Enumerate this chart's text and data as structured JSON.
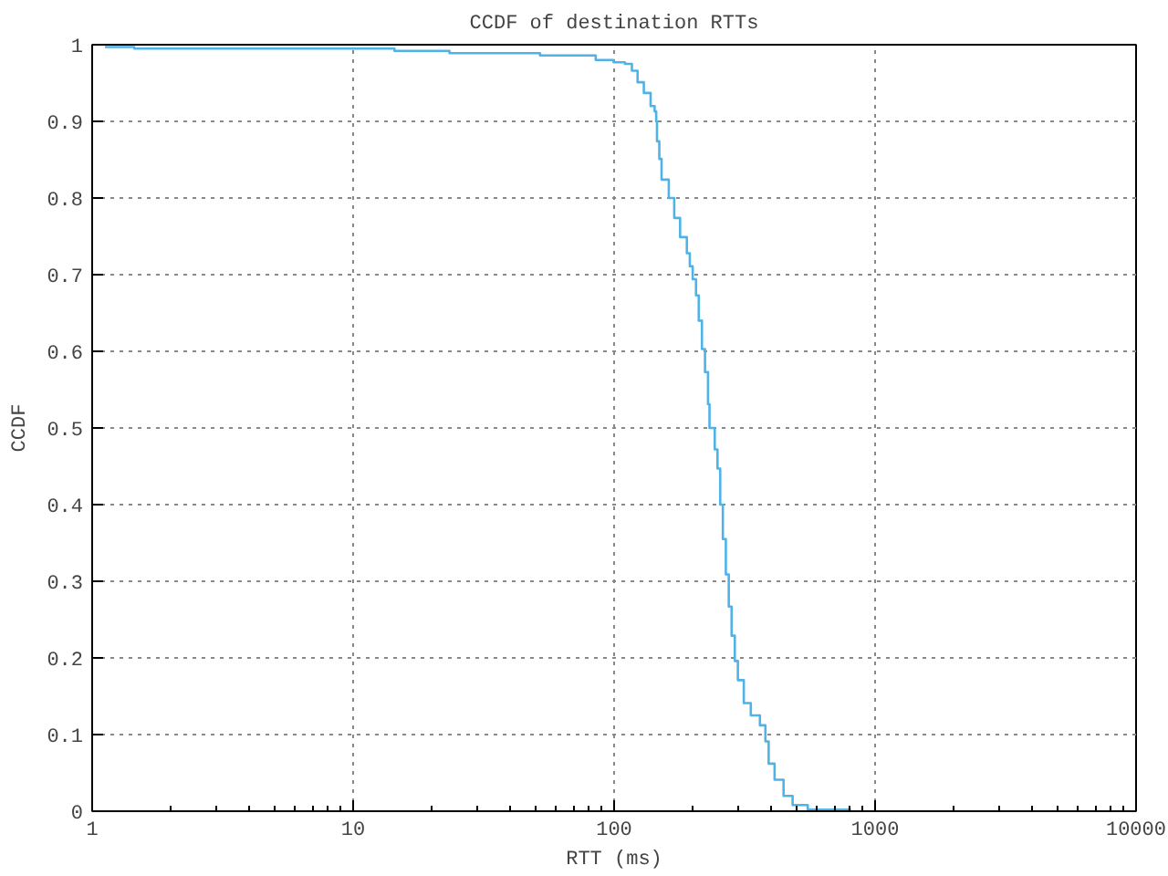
{
  "chart_data": {
    "type": "step",
    "title": "CCDF of destination RTTs",
    "xlabel": "RTT (ms)",
    "ylabel": "CCDF",
    "log": "x",
    "grid": true,
    "xlim": [
      1,
      10000
    ],
    "xticks": [
      1,
      10,
      100,
      1000,
      10000
    ],
    "ylim": [
      0,
      1
    ],
    "yticks": [
      0,
      0.1,
      0.2,
      0.3,
      0.4,
      0.5,
      0.6,
      0.7,
      0.8,
      0.9,
      1
    ],
    "series": [
      {
        "color": "#4fb3e8",
        "x": [
          1.12,
          1.45,
          14.4,
          23.4,
          52,
          85,
          99.5,
          110,
          117,
          123,
          130,
          138,
          143,
          145,
          146,
          149,
          152,
          162,
          170,
          179,
          190,
          195,
          200,
          206,
          211,
          217,
          223,
          229,
          232,
          243,
          249,
          255,
          261,
          268,
          275,
          282,
          290,
          298,
          314,
          334,
          362,
          380,
          391,
          412,
          446,
          483,
          552,
          808
        ],
        "values": [
          0.997,
          0.995,
          0.992,
          0.989,
          0.986,
          0.98,
          0.977,
          0.975,
          0.966,
          0.951,
          0.937,
          0.92,
          0.913,
          0.9,
          0.874,
          0.851,
          0.824,
          0.8,
          0.774,
          0.749,
          0.728,
          0.711,
          0.694,
          0.673,
          0.64,
          0.603,
          0.573,
          0.531,
          0.5,
          0.472,
          0.447,
          0.4,
          0.355,
          0.309,
          0.267,
          0.229,
          0.196,
          0.171,
          0.141,
          0.125,
          0.112,
          0.091,
          0.062,
          0.041,
          0.02,
          0.008,
          0.002,
          0.002
        ]
      }
    ]
  }
}
